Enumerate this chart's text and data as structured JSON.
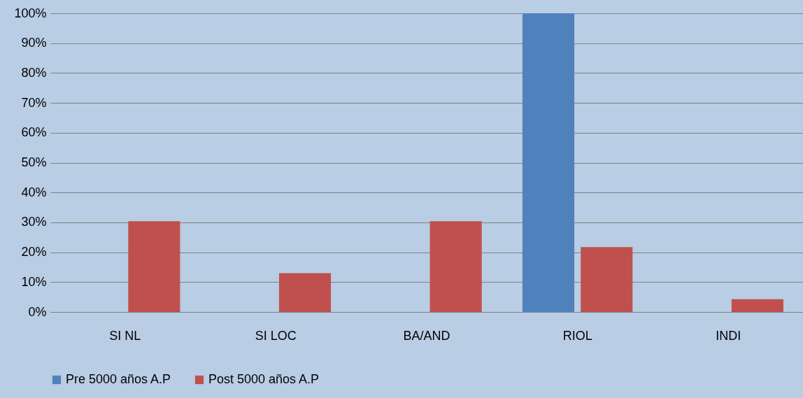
{
  "chart_data": {
    "type": "bar",
    "categories": [
      "SI NL",
      "SI LOC",
      "BA/AND",
      "RIOL",
      "INDI"
    ],
    "series": [
      {
        "name": "Pre 5000 años A.P",
        "color": "#4f81bd",
        "values": [
          0,
          0,
          0,
          100,
          0
        ]
      },
      {
        "name": "Post 5000 años A.P",
        "color": "#c0504d",
        "values": [
          30.4,
          13,
          30.4,
          21.7,
          4.3
        ]
      }
    ],
    "ylim": [
      0,
      100
    ],
    "yticks": [
      {
        "value": 0,
        "label": "0%"
      },
      {
        "value": 10,
        "label": "10%"
      },
      {
        "value": 20,
        "label": "20%"
      },
      {
        "value": 30,
        "label": "30%"
      },
      {
        "value": 40,
        "label": "40%"
      },
      {
        "value": 50,
        "label": "50%"
      },
      {
        "value": 60,
        "label": "60%"
      },
      {
        "value": 70,
        "label": "70%"
      },
      {
        "value": 80,
        "label": "80%"
      },
      {
        "value": 90,
        "label": "90%"
      },
      {
        "value": 100,
        "label": "100%"
      }
    ],
    "grid": "y",
    "legend": "bottom"
  }
}
